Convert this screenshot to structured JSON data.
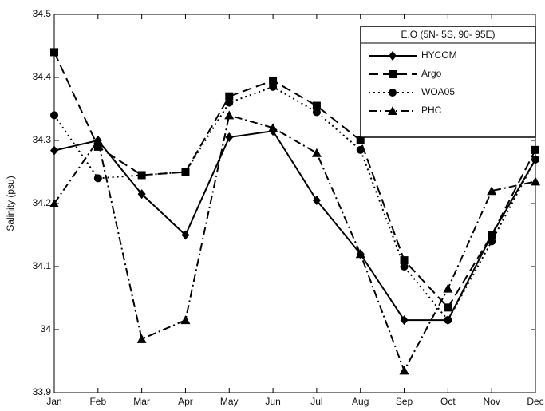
{
  "chart_data": {
    "type": "line",
    "y_label": "Salinity (psu)",
    "legend_title": "E.O (5N- 5S, 90- 95E)",
    "legend_position": "upper right",
    "categories": [
      "Jan",
      "Feb",
      "Mar",
      "Apr",
      "May",
      "Jun",
      "Jul",
      "Aug",
      "Sep",
      "Oct",
      "Nov",
      "Dec"
    ],
    "series": [
      {
        "name": "HYCOM",
        "color": "#000000",
        "marker": "diamond",
        "dash": "solid",
        "values": [
          34.284,
          34.3,
          34.215,
          34.15,
          34.305,
          34.315,
          34.205,
          34.12,
          34.015,
          34.015,
          34.15,
          34.27
        ]
      },
      {
        "name": "Argo",
        "color": "#000000",
        "marker": "square",
        "dash": "dashed",
        "values": [
          34.44,
          34.29,
          34.245,
          34.25,
          34.37,
          34.395,
          34.355,
          34.3,
          34.11,
          34.035,
          34.15,
          34.285
        ]
      },
      {
        "name": "WOA05",
        "color": "#000000",
        "marker": "circle",
        "dash": "dotted",
        "values": [
          34.34,
          34.24,
          34.245,
          34.25,
          34.36,
          34.385,
          34.345,
          34.285,
          34.1,
          34.015,
          34.14,
          34.27
        ]
      },
      {
        "name": "PHC",
        "color": "#000000",
        "marker": "triangle",
        "dash": "dashdot",
        "values": [
          34.2,
          34.3,
          33.985,
          34.015,
          34.34,
          34.32,
          34.28,
          34.12,
          33.935,
          34.065,
          34.22,
          34.235
        ]
      }
    ],
    "ylim": [
      33.9,
      34.5
    ],
    "yticks": [
      33.9,
      34,
      34.1,
      34.2,
      34.3,
      34.4,
      34.5
    ],
    "grid": false
  }
}
